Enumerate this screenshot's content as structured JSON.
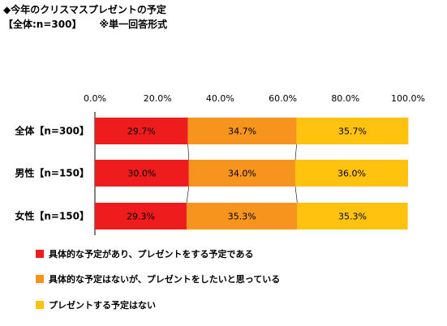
{
  "header": {
    "title": "◆今年のクリスマスプレゼントの予定",
    "subtitle": "【全体:n=300】",
    "note": "※単一回答形式"
  },
  "colors": {
    "series1": "#ee1c1c",
    "series2": "#f7941d",
    "series3": "#ffc20e"
  },
  "chart_data": {
    "type": "bar",
    "orientation": "horizontal-stacked-100",
    "categories": [
      "全体【n=300】",
      "男性【n=150】",
      "女性【n=150】"
    ],
    "xlim": [
      0,
      100
    ],
    "x_ticks": [
      "0.0%",
      "20.0%",
      "40.0%",
      "60.0%",
      "80.0%",
      "100.0%"
    ],
    "series": [
      {
        "name": "具体的な予定があり、プレゼントをする予定である",
        "values": [
          29.7,
          30.0,
          29.3
        ],
        "labels": [
          "29.7%",
          "30.0%",
          "29.3%"
        ]
      },
      {
        "name": "具体的な予定はないが、プレゼントをしたいと思っている",
        "values": [
          34.7,
          34.0,
          35.3
        ],
        "labels": [
          "34.7%",
          "34.0%",
          "35.3%"
        ]
      },
      {
        "name": "プレゼントする予定はない",
        "values": [
          35.7,
          36.0,
          35.3
        ],
        "labels": [
          "35.7%",
          "36.0%",
          "35.3%"
        ]
      }
    ],
    "legend_position": "bottom-left"
  }
}
